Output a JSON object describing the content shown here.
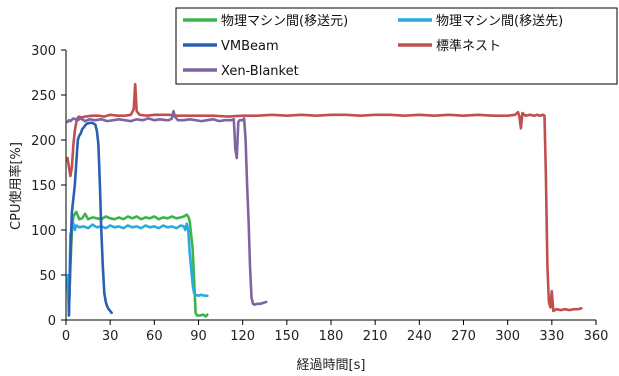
{
  "chart_data": {
    "type": "line",
    "xlabel": "経過時間[s]",
    "ylabel": "CPU使用率[%]",
    "xlim": [
      0,
      360
    ],
    "ylim": [
      0,
      300
    ],
    "x_ticks": [
      0,
      30,
      60,
      90,
      120,
      150,
      180,
      210,
      240,
      270,
      300,
      330,
      360
    ],
    "y_ticks": [
      0,
      50,
      100,
      150,
      200,
      250,
      300
    ],
    "grid": false,
    "legend_position": "top-right",
    "series": [
      {
        "name": "物理マシン間(移送元)",
        "color": "#3cb44b",
        "points": [
          [
            2,
            10
          ],
          [
            3,
            60
          ],
          [
            4,
            100
          ],
          [
            5,
            115
          ],
          [
            6,
            118
          ],
          [
            7,
            120
          ],
          [
            9,
            112
          ],
          [
            11,
            113
          ],
          [
            13,
            118
          ],
          [
            15,
            112
          ],
          [
            18,
            114
          ],
          [
            21,
            113
          ],
          [
            24,
            112
          ],
          [
            27,
            115
          ],
          [
            30,
            113
          ],
          [
            33,
            112
          ],
          [
            36,
            114
          ],
          [
            39,
            112
          ],
          [
            42,
            115
          ],
          [
            45,
            113
          ],
          [
            48,
            115
          ],
          [
            51,
            112
          ],
          [
            54,
            114
          ],
          [
            57,
            113
          ],
          [
            60,
            115
          ],
          [
            63,
            112
          ],
          [
            66,
            114
          ],
          [
            69,
            113
          ],
          [
            72,
            115
          ],
          [
            75,
            113
          ],
          [
            78,
            114
          ],
          [
            80,
            115
          ],
          [
            82,
            117
          ],
          [
            83,
            115
          ],
          [
            84,
            110
          ],
          [
            85,
            95
          ],
          [
            86,
            80
          ],
          [
            87,
            45
          ],
          [
            88,
            8
          ],
          [
            89,
            5
          ],
          [
            91,
            5
          ],
          [
            93,
            6
          ],
          [
            95,
            4
          ],
          [
            96,
            6
          ]
        ]
      },
      {
        "name": "物理マシン間(移送先)",
        "color": "#29abe2",
        "points": [
          [
            1,
            50
          ],
          [
            2,
            5
          ],
          [
            3,
            95
          ],
          [
            4,
            102
          ],
          [
            5,
            107
          ],
          [
            6,
            100
          ],
          [
            7,
            105
          ],
          [
            9,
            103
          ],
          [
            12,
            104
          ],
          [
            15,
            102
          ],
          [
            18,
            106
          ],
          [
            21,
            103
          ],
          [
            24,
            104
          ],
          [
            27,
            102
          ],
          [
            30,
            105
          ],
          [
            33,
            103
          ],
          [
            36,
            104
          ],
          [
            39,
            102
          ],
          [
            42,
            105
          ],
          [
            45,
            103
          ],
          [
            48,
            104
          ],
          [
            51,
            102
          ],
          [
            54,
            105
          ],
          [
            57,
            103
          ],
          [
            60,
            104
          ],
          [
            63,
            102
          ],
          [
            66,
            105
          ],
          [
            69,
            103
          ],
          [
            72,
            104
          ],
          [
            75,
            102
          ],
          [
            78,
            105
          ],
          [
            80,
            104
          ],
          [
            81,
            100
          ],
          [
            82,
            107
          ],
          [
            83,
            100
          ],
          [
            84,
            75
          ],
          [
            86,
            40
          ],
          [
            87,
            30
          ],
          [
            88,
            28
          ],
          [
            90,
            27
          ],
          [
            92,
            28
          ],
          [
            94,
            27
          ],
          [
            96,
            27
          ]
        ]
      },
      {
        "name": "VMBeam",
        "color": "#2b5fb4",
        "points": [
          [
            2,
            5
          ],
          [
            3,
            70
          ],
          [
            4,
            120
          ],
          [
            5,
            135
          ],
          [
            6,
            150
          ],
          [
            7,
            175
          ],
          [
            8,
            200
          ],
          [
            9,
            205
          ],
          [
            10,
            207
          ],
          [
            11,
            212
          ],
          [
            12,
            214
          ],
          [
            13,
            216
          ],
          [
            14,
            218
          ],
          [
            16,
            219
          ],
          [
            18,
            219
          ],
          [
            20,
            217
          ],
          [
            21,
            210
          ],
          [
            22,
            195
          ],
          [
            23,
            150
          ],
          [
            24,
            100
          ],
          [
            25,
            60
          ],
          [
            26,
            30
          ],
          [
            27,
            20
          ],
          [
            28,
            15
          ],
          [
            29,
            12
          ],
          [
            30,
            10
          ],
          [
            31,
            8
          ]
        ]
      },
      {
        "name": "標準ネスト",
        "color": "#c0504d",
        "points": [
          [
            1,
            180
          ],
          [
            3,
            160
          ],
          [
            4,
            170
          ],
          [
            5,
            195
          ],
          [
            6,
            210
          ],
          [
            7,
            220
          ],
          [
            8,
            225
          ],
          [
            9,
            226
          ],
          [
            10,
            225
          ],
          [
            13,
            226
          ],
          [
            18,
            227
          ],
          [
            22,
            227
          ],
          [
            26,
            226
          ],
          [
            30,
            228
          ],
          [
            35,
            227
          ],
          [
            40,
            227
          ],
          [
            44,
            228
          ],
          [
            46,
            234
          ],
          [
            47,
            262
          ],
          [
            48,
            232
          ],
          [
            50,
            228
          ],
          [
            55,
            227
          ],
          [
            60,
            228
          ],
          [
            65,
            228
          ],
          [
            70,
            228
          ],
          [
            75,
            227
          ],
          [
            80,
            227
          ],
          [
            90,
            227
          ],
          [
            100,
            227
          ],
          [
            110,
            226
          ],
          [
            120,
            227
          ],
          [
            130,
            227
          ],
          [
            140,
            228
          ],
          [
            150,
            227
          ],
          [
            160,
            228
          ],
          [
            170,
            227
          ],
          [
            180,
            228
          ],
          [
            190,
            228
          ],
          [
            200,
            227
          ],
          [
            210,
            228
          ],
          [
            220,
            228
          ],
          [
            230,
            227
          ],
          [
            240,
            228
          ],
          [
            250,
            227
          ],
          [
            260,
            228
          ],
          [
            270,
            227
          ],
          [
            280,
            228
          ],
          [
            290,
            227
          ],
          [
            300,
            227
          ],
          [
            305,
            228
          ],
          [
            307,
            231
          ],
          [
            308,
            226
          ],
          [
            309,
            213
          ],
          [
            310,
            230
          ],
          [
            312,
            227
          ],
          [
            315,
            228
          ],
          [
            318,
            227
          ],
          [
            320,
            228
          ],
          [
            322,
            227
          ],
          [
            324,
            228
          ],
          [
            325,
            227
          ],
          [
            326,
            160
          ],
          [
            327,
            60
          ],
          [
            328,
            20
          ],
          [
            329,
            14
          ],
          [
            330,
            32
          ],
          [
            331,
            10
          ],
          [
            333,
            12
          ],
          [
            336,
            11
          ],
          [
            339,
            12
          ],
          [
            342,
            11
          ],
          [
            345,
            12
          ],
          [
            348,
            12
          ],
          [
            350,
            13
          ]
        ]
      },
      {
        "name": "Xen-Blanket",
        "color": "#8064a2",
        "points": [
          [
            1,
            220
          ],
          [
            2,
            222
          ],
          [
            3,
            221
          ],
          [
            5,
            224
          ],
          [
            8,
            222
          ],
          [
            10,
            224
          ],
          [
            13,
            221
          ],
          [
            16,
            223
          ],
          [
            20,
            222
          ],
          [
            24,
            223
          ],
          [
            28,
            221
          ],
          [
            32,
            222
          ],
          [
            36,
            223
          ],
          [
            40,
            222
          ],
          [
            44,
            221
          ],
          [
            48,
            223
          ],
          [
            52,
            222
          ],
          [
            56,
            224
          ],
          [
            60,
            222
          ],
          [
            64,
            223
          ],
          [
            68,
            222
          ],
          [
            70,
            222
          ],
          [
            72,
            224
          ],
          [
            73,
            232
          ],
          [
            74,
            226
          ],
          [
            76,
            222
          ],
          [
            80,
            222
          ],
          [
            84,
            223
          ],
          [
            88,
            222
          ],
          [
            92,
            221
          ],
          [
            96,
            222
          ],
          [
            100,
            223
          ],
          [
            104,
            221
          ],
          [
            108,
            222
          ],
          [
            112,
            222
          ],
          [
            114,
            223
          ],
          [
            115,
            190
          ],
          [
            116,
            180
          ],
          [
            117,
            220
          ],
          [
            118,
            222
          ],
          [
            120,
            222
          ],
          [
            121,
            224
          ],
          [
            122,
            200
          ],
          [
            123,
            150
          ],
          [
            124,
            110
          ],
          [
            125,
            60
          ],
          [
            126,
            25
          ],
          [
            127,
            18
          ],
          [
            128,
            17
          ],
          [
            130,
            18
          ],
          [
            132,
            18
          ],
          [
            134,
            19
          ],
          [
            136,
            20
          ]
        ]
      }
    ]
  }
}
